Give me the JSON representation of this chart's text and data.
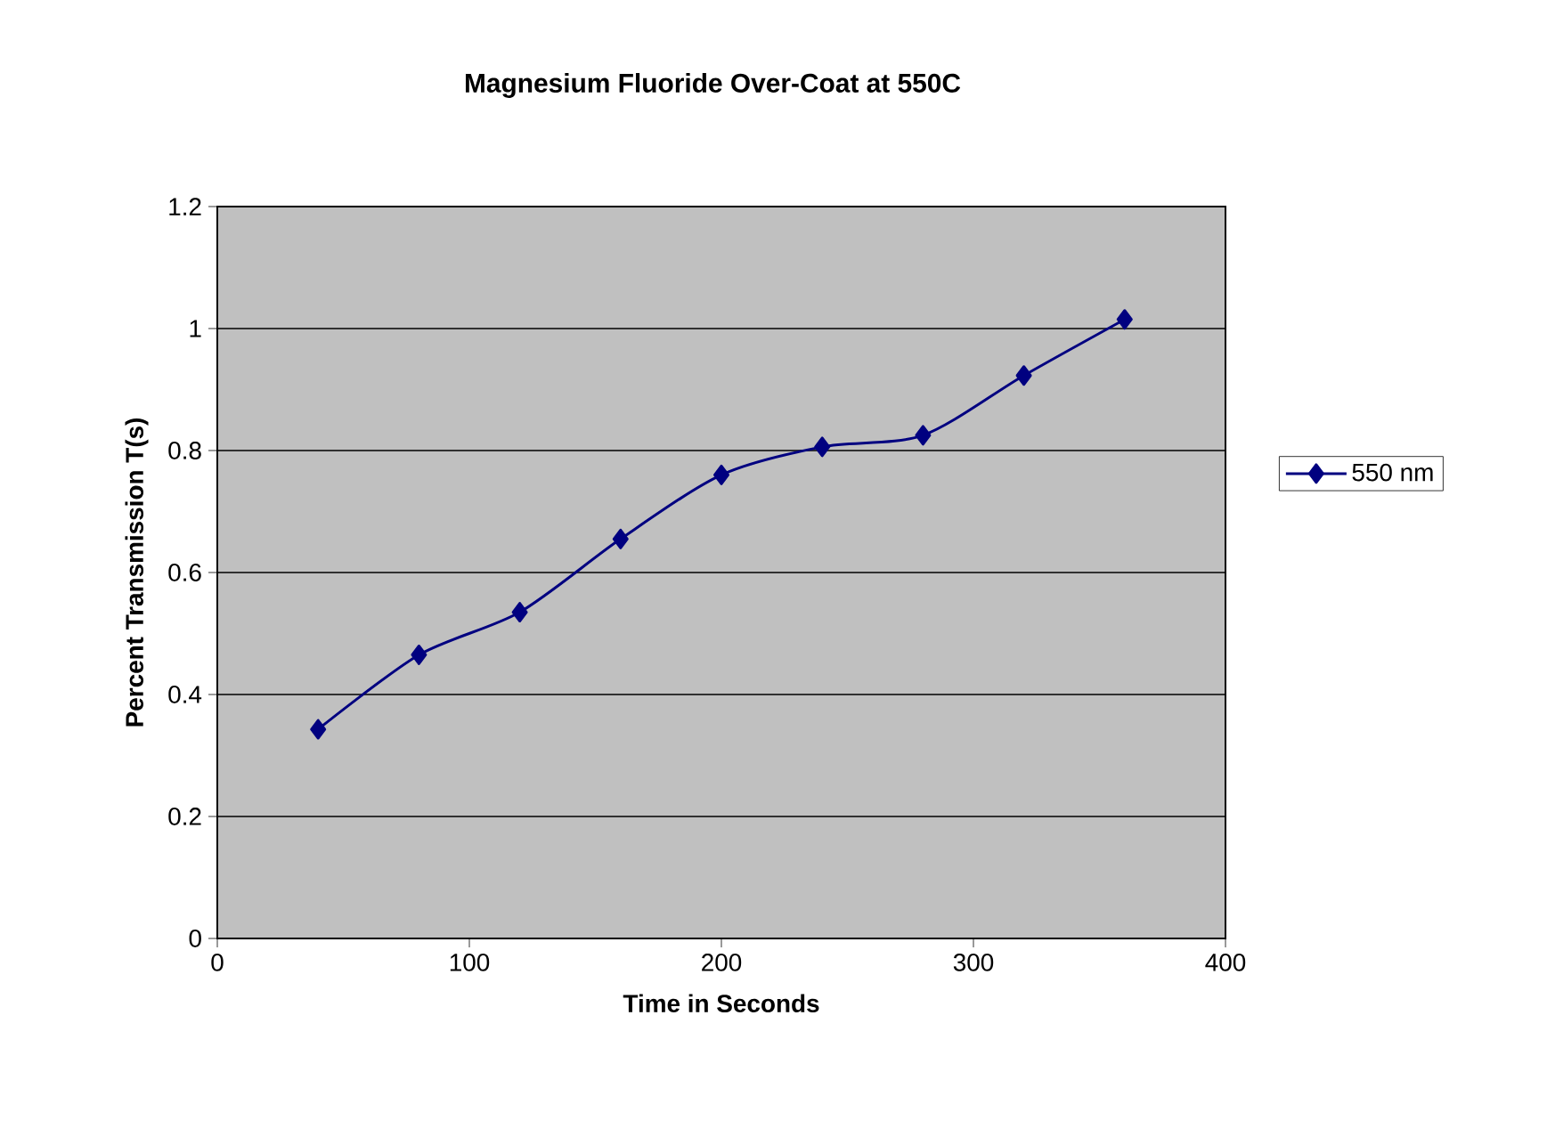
{
  "chart_data": {
    "type": "line",
    "title": "Magnesium Fluoride Over-Coat at 550C",
    "xlabel": "Time in Seconds",
    "ylabel": "Percent Transmission T(s)",
    "x": [
      40,
      80,
      120,
      160,
      200,
      240,
      280,
      320,
      360
    ],
    "series": [
      {
        "name": "550 nm",
        "color": "#000080",
        "values": [
          0.343,
          0.465,
          0.535,
          0.655,
          0.76,
          0.806,
          0.825,
          0.923,
          1.015
        ]
      }
    ],
    "xlim": [
      0,
      400
    ],
    "xticks": [
      0,
      100,
      200,
      300,
      400
    ],
    "ylim": [
      0,
      1.2
    ],
    "yticks": [
      0,
      0.2,
      0.4,
      0.6,
      0.8,
      1,
      1.2
    ],
    "grid": "y",
    "legend": "right",
    "marker": "diamond",
    "line_style": "solid"
  }
}
